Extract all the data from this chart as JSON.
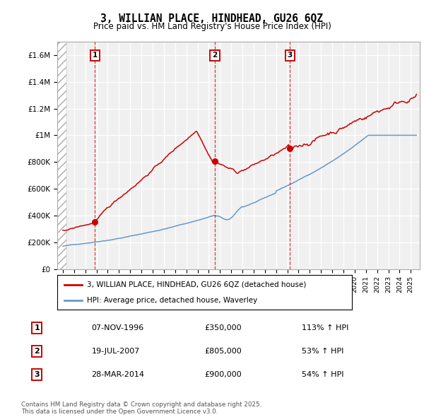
{
  "title": "3, WILLIAN PLACE, HINDHEAD, GU26 6QZ",
  "subtitle": "Price paid vs. HM Land Registry's House Price Index (HPI)",
  "purchases": [
    {
      "label": "1",
      "date_num": 1996.85,
      "price": 350000,
      "note": "113% ↑ HPI"
    },
    {
      "label": "2",
      "date_num": 2007.54,
      "price": 805000,
      "note": "53% ↑ HPI"
    },
    {
      "label": "3",
      "date_num": 2014.23,
      "price": 900000,
      "note": "54% ↑ HPI"
    }
  ],
  "purchase_dates_str": [
    "07-NOV-1996",
    "19-JUL-2007",
    "28-MAR-2014"
  ],
  "purchase_prices_str": [
    "£350,000",
    "£805,000",
    "£900,000"
  ],
  "legend_house": "3, WILLIAN PLACE, HINDHEAD, GU26 6QZ (detached house)",
  "legend_hpi": "HPI: Average price, detached house, Waverley",
  "footer": "Contains HM Land Registry data © Crown copyright and database right 2025.\nThis data is licensed under the Open Government Licence v3.0.",
  "house_color": "#cc0000",
  "hpi_color": "#6699cc",
  "bg_color": "#ffffff",
  "plot_bg": "#f0f0f0",
  "grid_color": "#ffffff",
  "ylim": [
    0,
    1700000
  ],
  "xlim_start": 1993.5,
  "xlim_end": 2025.8
}
